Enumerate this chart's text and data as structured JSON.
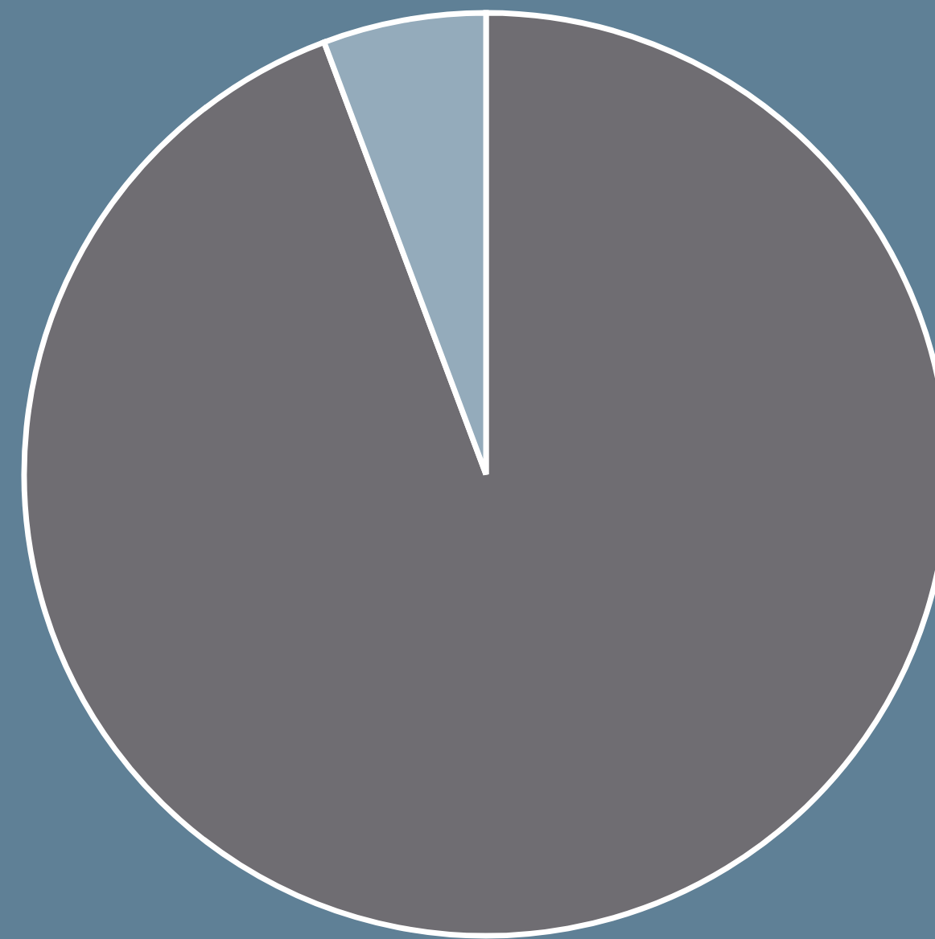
{
  "chart_data": {
    "type": "pie",
    "categories": [
      null,
      null
    ],
    "values": [
      94.3,
      5.7
    ],
    "colors": [
      "#6f6d72",
      "#94abbb"
    ]
  }
}
